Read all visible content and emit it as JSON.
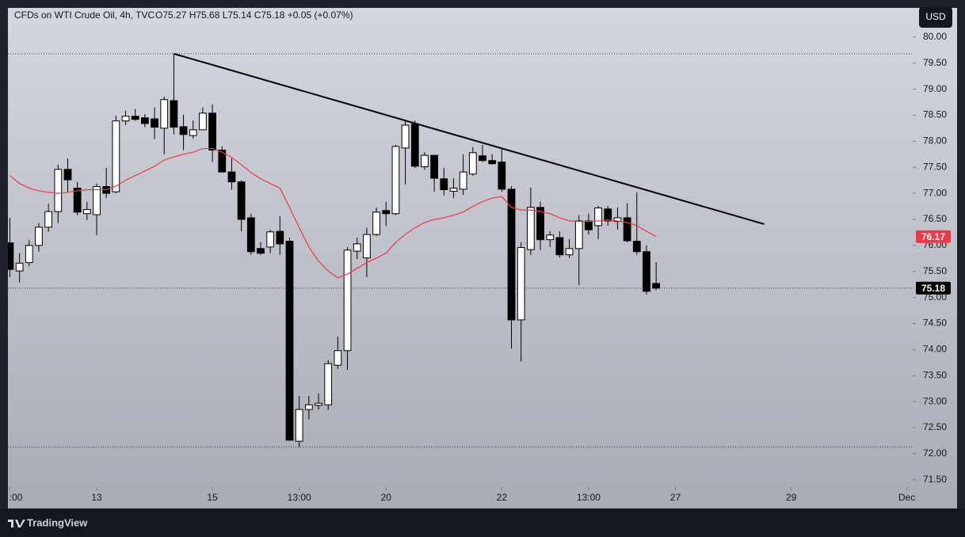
{
  "chart_data": {
    "type": "candlestick",
    "title": "CFDs on WTI Crude Oil, 4h, TVC",
    "ohlc_text": "O75.27  H75.68  L75.14  C75.18  +0.05 (+0.07%)",
    "currency": "USD",
    "branding": "TradingView",
    "x": [
      0,
      1,
      2,
      3,
      4,
      5,
      6,
      7,
      8,
      9,
      10,
      11,
      12,
      13,
      14,
      15,
      16,
      17,
      18,
      19,
      20,
      21,
      22,
      23,
      24,
      25,
      26,
      27,
      28,
      29,
      30,
      31,
      32,
      33,
      34,
      35,
      36,
      37,
      38,
      39,
      40,
      41,
      42,
      43,
      44,
      45,
      46,
      47,
      48,
      49,
      50,
      51,
      52,
      53,
      54,
      55,
      56,
      57,
      58,
      59,
      60,
      61,
      62,
      63,
      64,
      65,
      66,
      67
    ],
    "open": [
      76.05,
      75.51,
      75.67,
      76.0,
      76.35,
      76.65,
      77.46,
      77.1,
      76.61,
      76.59,
      77.13,
      77.03,
      78.39,
      78.48,
      78.45,
      78.43,
      78.25,
      78.78,
      78.28,
      78.11,
      78.22,
      78.54,
      77.83,
      77.41,
      77.22,
      76.53,
      75.94,
      75.97,
      76.27,
      76.08,
      72.24,
      72.85,
      72.93,
      72.94,
      73.7,
      73.98,
      75.89,
      75.76,
      76.21,
      76.67,
      76.61,
      77.87,
      78.33,
      77.51,
      77.73,
      77.28,
      77.04,
      77.08,
      77.37,
      77.72,
      77.63,
      77.6,
      77.08,
      74.57,
      75.92,
      76.73,
      76.11,
      76.15,
      75.82,
      75.94,
      76.47,
      76.38,
      76.7,
      76.46,
      76.53,
      76.08,
      75.88,
      75.27
    ],
    "high": [
      76.53,
      75.85,
      76.1,
      76.43,
      76.8,
      77.55,
      77.67,
      77.22,
      76.84,
      77.19,
      77.49,
      78.49,
      78.59,
      78.62,
      78.52,
      78.65,
      78.86,
      79.68,
      78.51,
      78.4,
      78.65,
      78.71,
      77.9,
      77.67,
      77.25,
      76.61,
      76.06,
      76.3,
      76.56,
      76.15,
      73.11,
      73.11,
      73.16,
      73.8,
      74.25,
      75.97,
      76.15,
      76.34,
      76.73,
      76.84,
      77.93,
      78.4,
      78.4,
      77.79,
      77.73,
      77.49,
      77.29,
      77.75,
      77.89,
      77.93,
      77.75,
      77.87,
      77.14,
      76.06,
      77.11,
      76.84,
      76.27,
      76.27,
      76.12,
      76.58,
      76.61,
      76.76,
      76.76,
      76.73,
      76.81,
      77.02,
      76.0,
      75.68
    ],
    "low": [
      75.39,
      75.29,
      75.6,
      75.88,
      76.26,
      76.43,
      77.03,
      76.58,
      76.49,
      76.2,
      76.91,
      77.0,
      78.31,
      78.39,
      78.27,
      78.04,
      77.75,
      78.13,
      77.83,
      78.05,
      78.21,
      77.6,
      77.41,
      77.07,
      76.27,
      75.82,
      75.82,
      75.85,
      75.82,
      72.26,
      72.13,
      72.66,
      72.85,
      72.84,
      73.63,
      73.61,
      75.74,
      75.39,
      76.18,
      76.37,
      76.58,
      77.17,
      77.49,
      77.45,
      77.03,
      76.96,
      76.91,
      76.97,
      77.34,
      77.6,
      77.55,
      77.03,
      74.02,
      73.77,
      75.82,
      75.91,
      75.97,
      75.77,
      75.76,
      75.24,
      76.21,
      76.12,
      76.38,
      76.3,
      76.06,
      75.82,
      75.06,
      75.14
    ],
    "close": [
      75.54,
      75.66,
      76.0,
      76.35,
      76.65,
      77.46,
      77.26,
      76.64,
      76.69,
      77.13,
      77.0,
      78.39,
      78.48,
      78.42,
      78.34,
      78.27,
      78.8,
      78.27,
      78.13,
      78.22,
      78.54,
      77.83,
      77.41,
      77.22,
      76.5,
      75.88,
      75.85,
      76.26,
      76.03,
      72.26,
      72.85,
      72.94,
      72.97,
      73.73,
      73.98,
      75.91,
      76.03,
      76.21,
      76.64,
      76.61,
      77.9,
      78.31,
      77.52,
      77.73,
      77.29,
      77.07,
      77.1,
      77.41,
      77.78,
      77.63,
      77.57,
      77.08,
      74.57,
      75.96,
      76.73,
      76.11,
      76.2,
      75.82,
      75.94,
      76.47,
      76.3,
      76.72,
      76.47,
      76.53,
      76.09,
      75.88,
      75.12,
      75.18
    ],
    "up_color": "#ffffff",
    "down_color": "#000000",
    "moving_average": {
      "color": "#f23645",
      "values": [
        77.34,
        77.19,
        77.1,
        77.05,
        77.02,
        77.0,
        77.02,
        77.05,
        77.07,
        77.07,
        77.07,
        77.14,
        77.25,
        77.34,
        77.43,
        77.52,
        77.64,
        77.7,
        77.75,
        77.79,
        77.86,
        77.86,
        77.79,
        77.69,
        77.55,
        77.4,
        77.28,
        77.19,
        77.1,
        76.73,
        76.34,
        75.97,
        75.7,
        75.51,
        75.38,
        75.45,
        75.56,
        75.67,
        75.76,
        75.85,
        76.06,
        76.21,
        76.34,
        76.44,
        76.5,
        76.53,
        76.58,
        76.64,
        76.75,
        76.84,
        76.91,
        76.94,
        76.73,
        76.68,
        76.68,
        76.65,
        76.61,
        76.53,
        76.47,
        76.46,
        76.46,
        76.47,
        76.49,
        76.47,
        76.44,
        76.38,
        76.27,
        76.17
      ]
    },
    "trendline": {
      "color": "#000000",
      "x": [
        17,
        78.2
      ],
      "y": [
        79.68,
        76.41
      ]
    },
    "price_lines": [
      79.68,
      75.18,
      72.13
    ],
    "price_badges": [
      {
        "value": 76.17,
        "color": "#f23645"
      },
      {
        "value": 75.18,
        "color": "#000000"
      }
    ],
    "xlim": [
      -0.2,
      93.6
    ],
    "ylim": [
      71.36,
      80.56
    ],
    "xticks": [
      {
        "value": 0,
        "label": ":00"
      },
      {
        "value": 9,
        "label": "13"
      },
      {
        "value": 21,
        "label": "15"
      },
      {
        "value": 30,
        "label": "13:00"
      },
      {
        "value": 39,
        "label": "20"
      },
      {
        "value": 51,
        "label": "22"
      },
      {
        "value": 60,
        "label": "13:00"
      },
      {
        "value": 69,
        "label": "27"
      },
      {
        "value": 81,
        "label": "29"
      },
      {
        "value": 93,
        "label": "Dec"
      }
    ],
    "yticks": [
      {
        "value": 71.5,
        "label": "71.50"
      },
      {
        "value": 72,
        "label": "72.00"
      },
      {
        "value": 72.5,
        "label": "72.50"
      },
      {
        "value": 73,
        "label": "73.00"
      },
      {
        "value": 73.5,
        "label": "73.50"
      },
      {
        "value": 74,
        "label": "74.00"
      },
      {
        "value": 74.5,
        "label": "74.50"
      },
      {
        "value": 75,
        "label": "75.00"
      },
      {
        "value": 75.5,
        "label": "75.50"
      },
      {
        "value": 76,
        "label": "76.00"
      },
      {
        "value": 76.5,
        "label": "76.50"
      },
      {
        "value": 77,
        "label": "77.00"
      },
      {
        "value": 77.5,
        "label": "77.50"
      },
      {
        "value": 78,
        "label": "78.00"
      },
      {
        "value": 78.5,
        "label": "78.50"
      },
      {
        "value": 79,
        "label": "79.00"
      },
      {
        "value": 79.5,
        "label": "79.50"
      },
      {
        "value": 80,
        "label": "80.00"
      }
    ]
  }
}
